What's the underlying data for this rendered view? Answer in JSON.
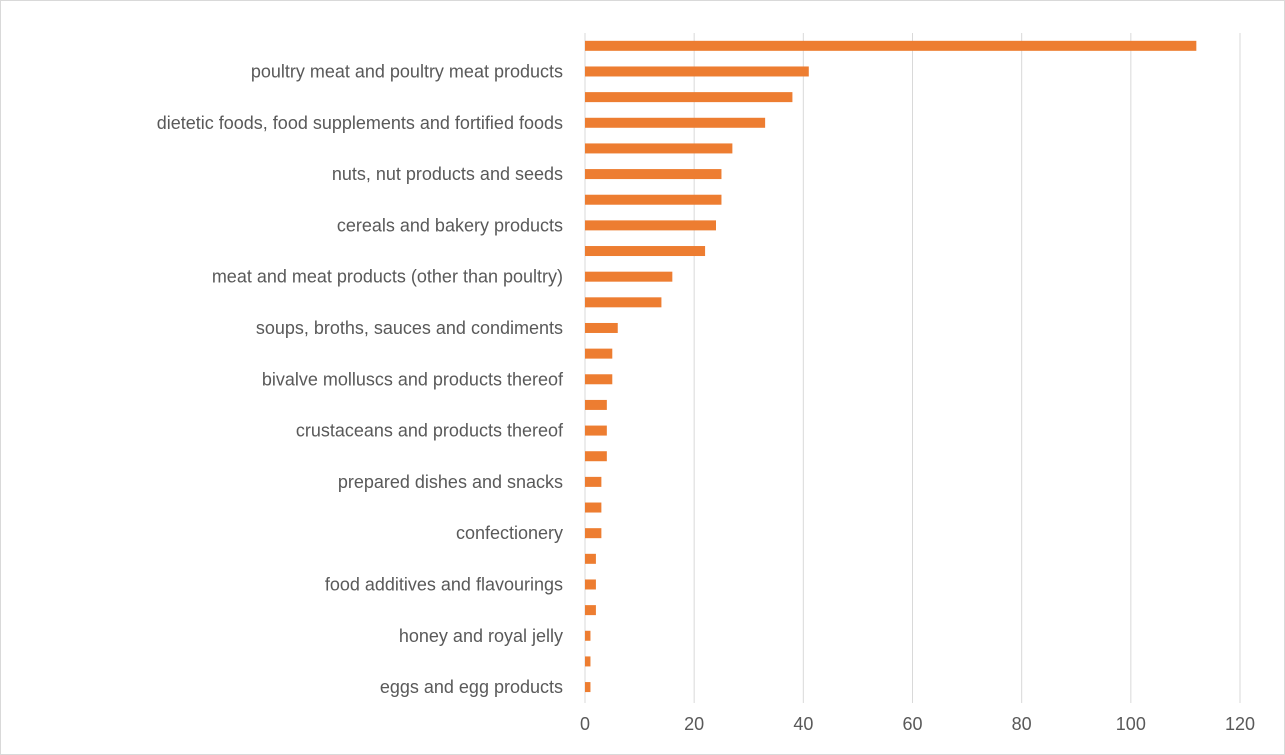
{
  "chart_data": {
    "type": "bar",
    "orientation": "horizontal",
    "categories": [
      "",
      "poultry meat and poultry meat products",
      "",
      "dietetic foods, food supplements and fortified foods",
      "",
      "nuts, nut products and seeds",
      "",
      "cereals and bakery products",
      "",
      "meat and meat products (other than poultry)",
      "",
      "soups, broths, sauces and condiments",
      "",
      "bivalve molluscs and products thereof",
      "",
      "crustaceans and products thereof",
      "",
      "prepared dishes and snacks",
      "",
      "confectionery",
      "",
      "food additives and flavourings",
      "",
      "honey and royal jelly",
      "",
      "eggs and egg products"
    ],
    "values": [
      112,
      41,
      38,
      33,
      27,
      25,
      25,
      24,
      22,
      16,
      14,
      6,
      5,
      5,
      4,
      4,
      4,
      3,
      3,
      3,
      2,
      2,
      2,
      1,
      1,
      1
    ],
    "xlim": [
      0,
      120
    ],
    "x_ticks": [
      "0",
      "20",
      "40",
      "60",
      "80",
      "100",
      "120"
    ],
    "grid": true,
    "bar_color": "#ED7D31",
    "grid_color": "#D9D9D9",
    "text_color": "#595959",
    "title": "",
    "xlabel": "",
    "ylabel": ""
  }
}
